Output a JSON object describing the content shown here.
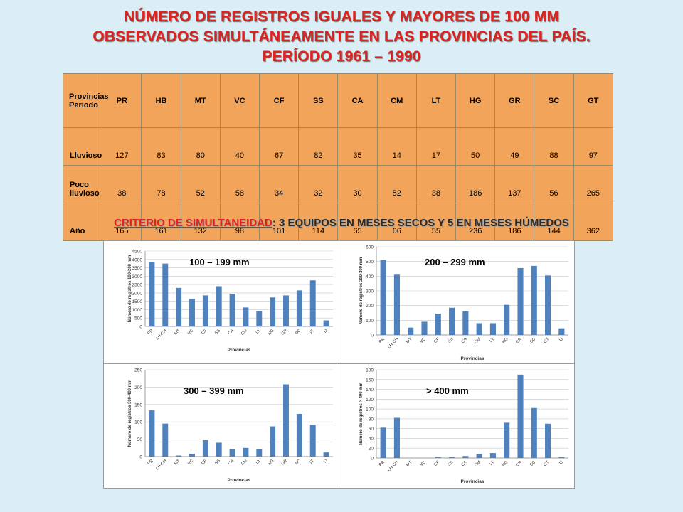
{
  "title": {
    "line1": "NÚMERO DE REGISTROS IGUALES Y MAYORES DE 100 MM",
    "line2": "OBSERVADOS SIMULTÁNEAMENTE EN LAS PROVINCIAS DEL PAÍS.",
    "line3": "PERÍODO 1961 – 1990"
  },
  "table": {
    "corner_top": "Provincias",
    "corner_bottom": "Período",
    "columns": [
      "PR",
      "HB",
      "MT",
      "VC",
      "CF",
      "SS",
      "CA",
      "CM",
      "LT",
      "HG",
      "GR",
      "SC",
      "GT"
    ],
    "rows": [
      {
        "label": "Lluvioso",
        "values": [
          "127",
          "83",
          "80",
          "40",
          "67",
          "82",
          "35",
          "14",
          "17",
          "50",
          "49",
          "88",
          "97"
        ]
      },
      {
        "label": "Poco lluvioso",
        "values": [
          "38",
          "78",
          "52",
          "58",
          "34",
          "32",
          "30",
          "52",
          "38",
          "186",
          "137",
          "56",
          "265"
        ]
      },
      {
        "label": "Año",
        "values": [
          "165",
          "161",
          "132",
          "98",
          "101",
          "114",
          "65",
          "66",
          "55",
          "236",
          "186",
          "144",
          "362"
        ]
      }
    ]
  },
  "criterio": {
    "lead": "CRITERIO DE SIMULTANEIDAD",
    "rest": ": 3 EQUIPOS EN MESES SECOS Y 5 EN MESES HÚMEDOS"
  },
  "colors": {
    "bar": "#4f81bd",
    "table": "#f2a45a",
    "title": "#e0221e"
  },
  "chart_data": [
    {
      "type": "bar",
      "title": "100 – 199 mm",
      "xlabel": "Provincias",
      "ylabel": "Número de registros 100-200 mm",
      "categories": [
        "PR",
        "LH-CH",
        "MT",
        "VC",
        "CF",
        "SS",
        "CA",
        "CM",
        "LT",
        "HG",
        "GR",
        "SC",
        "GT",
        "IJ"
      ],
      "values": [
        3850,
        3750,
        2300,
        1650,
        1850,
        2400,
        1950,
        1130,
        920,
        1730,
        1850,
        2150,
        2750,
        360
      ],
      "ylim": [
        0,
        4500
      ],
      "yticks": [
        "0",
        "500",
        "1000",
        "1500",
        "2000",
        "2500",
        "3000",
        "3500",
        "4000",
        "4500"
      ]
    },
    {
      "type": "bar",
      "title": "200 – 299 mm",
      "xlabel": "Provincias",
      "ylabel": "Número de registros 200-300 mm",
      "categories": [
        "PR",
        "LH-CH",
        "MT",
        "VC",
        "CF",
        "SS",
        "CA",
        "CM",
        "LT",
        "HG",
        "GR",
        "SC",
        "GT",
        "IJ"
      ],
      "values": [
        510,
        410,
        50,
        90,
        145,
        185,
        160,
        80,
        80,
        205,
        455,
        470,
        405,
        45
      ],
      "ylim": [
        0,
        600
      ],
      "yticks": [
        "0",
        "100",
        "200",
        "300",
        "400",
        "500",
        "600"
      ]
    },
    {
      "type": "bar",
      "title": "300 – 399 mm",
      "xlabel": "Provincias",
      "ylabel": "Número de registros 300-400 mm",
      "categories": [
        "PR",
        "LH-CH",
        "MT",
        "VC",
        "CF",
        "SS",
        "CA",
        "CM",
        "LT",
        "HG",
        "GR",
        "SC",
        "GT",
        "IJ"
      ],
      "values": [
        133,
        95,
        3,
        8,
        47,
        40,
        22,
        25,
        22,
        87,
        208,
        123,
        92,
        12
      ],
      "ylim": [
        0,
        250
      ],
      "yticks": [
        "0",
        "50",
        "100",
        "150",
        "200",
        "250"
      ]
    },
    {
      "type": "bar",
      "title": "> 400 mm",
      "xlabel": "Provincias",
      "ylabel": "Número de registros > 400 mm",
      "categories": [
        "PR",
        "LH-CH",
        "MT",
        "VC",
        "CF",
        "SS",
        "CA",
        "CM",
        "LT",
        "HG",
        "GR",
        "SC",
        "GT",
        "IJ"
      ],
      "values": [
        62,
        82,
        0,
        0,
        2,
        2,
        4,
        8,
        10,
        72,
        170,
        102,
        70,
        2
      ],
      "ylim": [
        0,
        180
      ],
      "yticks": [
        "0",
        "20",
        "40",
        "60",
        "80",
        "100",
        "120",
        "140",
        "160",
        "180"
      ]
    }
  ]
}
